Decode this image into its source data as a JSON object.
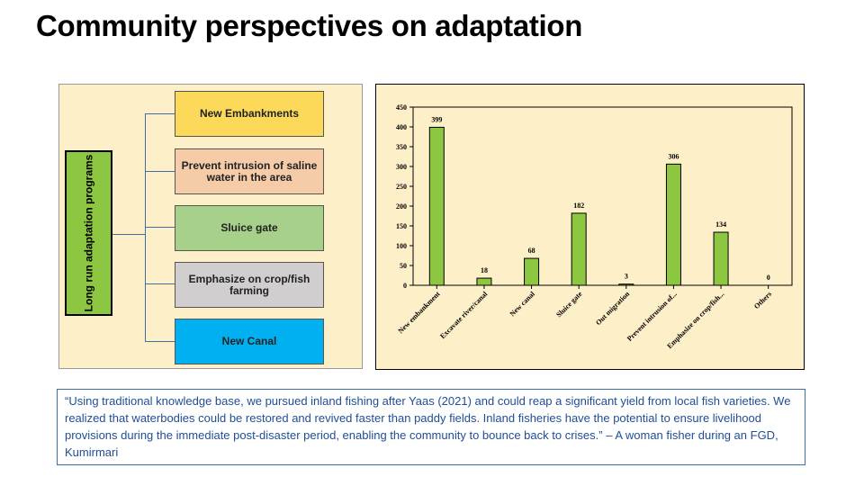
{
  "slide": {
    "title": "Community perspectives on adaptation"
  },
  "diagram": {
    "root_label": "Long run adaptation programs",
    "branches": [
      {
        "label": "New Embankments",
        "color": "#fdd95a"
      },
      {
        "label": "Prevent intrusion of saline water in the area",
        "color": "#f6cba8"
      },
      {
        "label": "Sluice gate",
        "color": "#a7d18b"
      },
      {
        "label": "Emphasize on crop/fish farming",
        "color": "#d0cece"
      },
      {
        "label": "New Canal",
        "color": "#00b0f0"
      }
    ]
  },
  "chart_data": {
    "type": "bar",
    "categories": [
      "New embankment",
      "Excavate river/canal",
      "New canal",
      "Sluice gate",
      "Out migration",
      "Prevent intrusion of...",
      "Emphasize on crop/fish...",
      "Others"
    ],
    "values": [
      399,
      18,
      68,
      182,
      3,
      306,
      134,
      0
    ],
    "ylim": [
      0,
      450
    ],
    "yticks": [
      0,
      50,
      100,
      150,
      200,
      250,
      300,
      350,
      400,
      450
    ],
    "bar_color": "#8dc640",
    "title": "",
    "xlabel": "",
    "ylabel": ""
  },
  "quote": {
    "text": "“Using traditional knowledge base, we pursued inland fishing after Yaas (2021) and could reap a significant yield from local fish varieties. We realized that waterbodies could be restored and revived faster than paddy fields. Inland fisheries have the potential to ensure livelihood provisions during the immediate post-disaster period, enabling the community to bounce back to crises.” – A woman fisher during an FGD, Kumirmari"
  }
}
